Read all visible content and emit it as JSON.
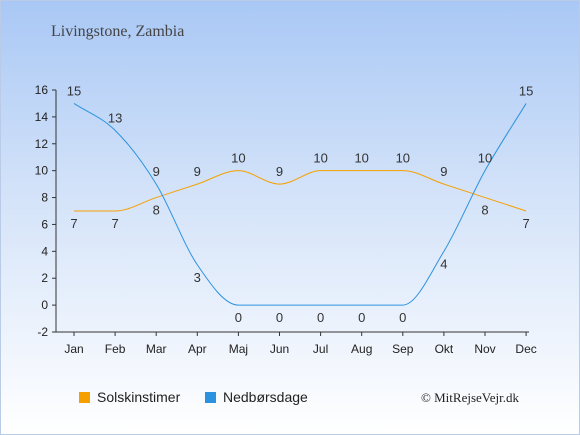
{
  "title": "Livingstone, Zambia",
  "copyright": "© MitRejseVejr.dk",
  "chart_data": {
    "type": "line",
    "categories": [
      "Jan",
      "Feb",
      "Mar",
      "Apr",
      "Maj",
      "Jun",
      "Jul",
      "Aug",
      "Sep",
      "Okt",
      "Nov",
      "Dec"
    ],
    "series": [
      {
        "name": "Solskinstimer",
        "color": "#f5a000",
        "values": [
          7,
          7,
          8,
          9,
          10,
          9,
          10,
          10,
          10,
          9,
          8,
          7
        ]
      },
      {
        "name": "Nedbørsdage",
        "color": "#2c92e0",
        "values": [
          15,
          13,
          9,
          3,
          0,
          0,
          0,
          0,
          0,
          4,
          10,
          15
        ]
      }
    ],
    "ylim": [
      -2,
      16
    ],
    "yticks": [
      -2,
      0,
      2,
      4,
      6,
      8,
      10,
      12,
      14,
      16
    ],
    "grid": false,
    "legend": "bottom-left"
  }
}
